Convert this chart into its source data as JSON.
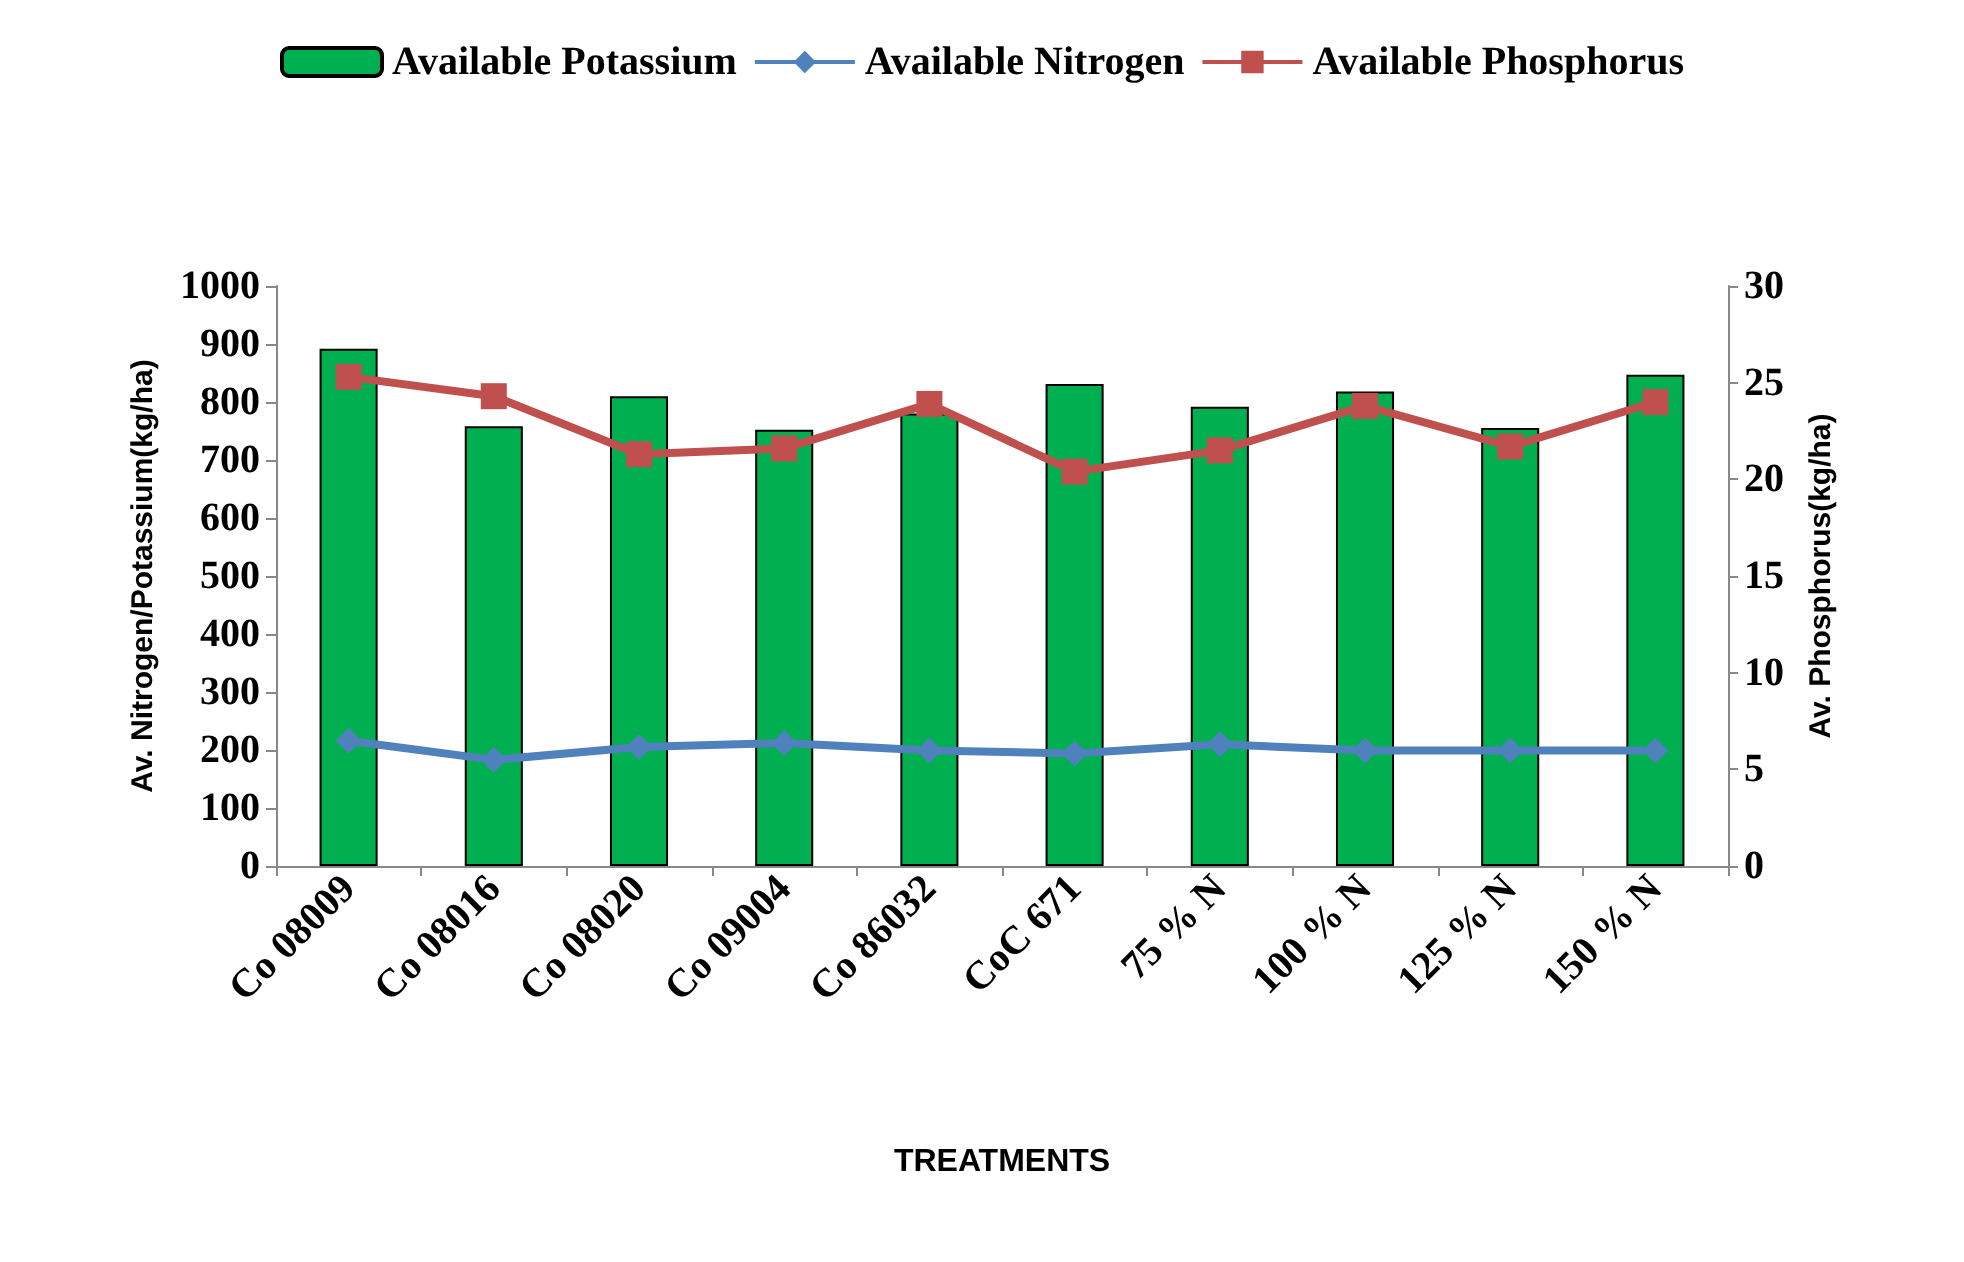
{
  "chart_data": {
    "type": "bar",
    "xlabel": "TREATMENTS",
    "ylabel": "Av. Nitrogen/Potassium(kg/ha)",
    "y2label": "Av. Phosphorus(kg/ha)",
    "categories": [
      "Co 08009",
      "Co 08016",
      "Co 08020",
      "Co 09004",
      "Co 86032",
      "CoC 671",
      "75 % N",
      "100 % N",
      "125 % N",
      "150 % N"
    ],
    "series": [
      {
        "name": "Available Potassium",
        "color": "#00b050",
        "values": [
          892,
          758,
          810,
          752,
          780,
          831,
          792,
          818,
          755,
          847
        ]
      },
      {
        "name": "Available Nitrogen",
        "type": "line",
        "color": "#4f81bd",
        "marker": "diamond",
        "values": [
          216,
          183,
          205,
          212,
          199,
          194,
          210,
          199,
          199,
          199
        ]
      },
      {
        "name": "Available Phosphorus",
        "type": "line",
        "color": "#c0504d",
        "marker": "square",
        "axis": "y2",
        "values": [
          25.3,
          24.3,
          21.3,
          21.6,
          23.9,
          20.4,
          21.5,
          23.8,
          21.7,
          24.0
        ]
      }
    ],
    "ylim": [
      0,
      1000
    ],
    "yticks": [
      0,
      100,
      200,
      300,
      400,
      500,
      600,
      700,
      800,
      900,
      1000
    ],
    "y2lim": [
      0,
      30
    ],
    "y2ticks": [
      0,
      5,
      10,
      15,
      20,
      25,
      30
    ],
    "grid": false,
    "legend": "top"
  }
}
